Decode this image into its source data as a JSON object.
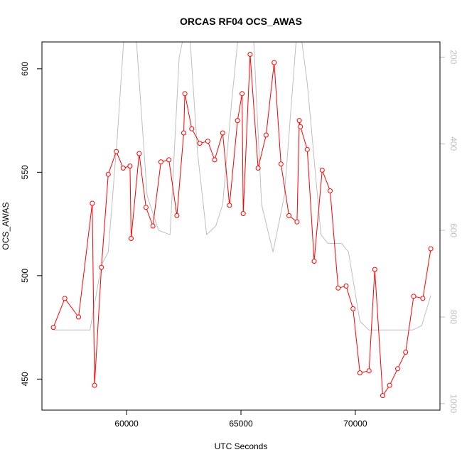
{
  "chart_data": {
    "type": "line",
    "title": "ORCAS RF04 OCS_AWAS",
    "xlabel": "UTC Seconds",
    "ylabel": "OCS_AWAS",
    "xlim": [
      56300,
      73700
    ],
    "ylim": [
      435,
      613
    ],
    "y2lim": [
      1015,
      165
    ],
    "x_ticks": [
      60000,
      65000,
      70000
    ],
    "y_ticks": [
      450,
      500,
      550,
      600
    ],
    "y2_ticks": [
      200,
      400,
      600,
      800,
      1000
    ],
    "grid": false,
    "legend": "none",
    "colors": {
      "primary": "#ff0000",
      "secondary": "#bebebe"
    },
    "series": [
      {
        "role": "primary",
        "x": [
          56800,
          57300,
          57900,
          58500,
          58600,
          58900,
          59200,
          59550,
          59850,
          60150,
          60200,
          60550,
          60850,
          61150,
          61500,
          61850,
          62200,
          62500,
          62550,
          62850,
          63200,
          63550,
          63850,
          64200,
          64500,
          64850,
          65050,
          65100,
          65400,
          65750,
          66100,
          66450,
          66750,
          67100,
          67450,
          67550,
          67600,
          67900,
          68200,
          68550,
          68900,
          69250,
          69600,
          69900,
          70200,
          70600,
          70850,
          71200,
          71500,
          71850,
          72200,
          72550,
          72950,
          73300
        ],
        "values": [
          475,
          489,
          480,
          535,
          447,
          504,
          549,
          560,
          552,
          553,
          518,
          559,
          533,
          524,
          555,
          556,
          529,
          569,
          588,
          571,
          564,
          565,
          556,
          569,
          534,
          575,
          588,
          530,
          607,
          552,
          568,
          603,
          554,
          529,
          526,
          575,
          572,
          561,
          507,
          551,
          541,
          494,
          495,
          484,
          453,
          454,
          503,
          442,
          447,
          455,
          463,
          490,
          489,
          513
        ]
      },
      {
        "role": "secondary",
        "x": [
          56800,
          58400,
          58900,
          59200,
          59600,
          59900,
          60400,
          60900,
          61400,
          61900,
          62300,
          62700,
          63100,
          63500,
          63900,
          64200,
          64600,
          64900,
          65500,
          65900,
          66400,
          66900,
          67500,
          67900,
          68500,
          68800,
          69100,
          69400,
          69700,
          70200,
          70600,
          71000,
          71500,
          72000,
          72500,
          72900,
          73300
        ],
        "values": [
          830,
          830,
          680,
          650,
          380,
          140,
          140,
          520,
          600,
          610,
          200,
          100,
          420,
          610,
          590,
          540,
          300,
          140,
          100,
          540,
          650,
          520,
          100,
          260,
          610,
          630,
          630,
          630,
          650,
          810,
          830,
          830,
          830,
          830,
          830,
          820,
          750
        ]
      }
    ]
  }
}
